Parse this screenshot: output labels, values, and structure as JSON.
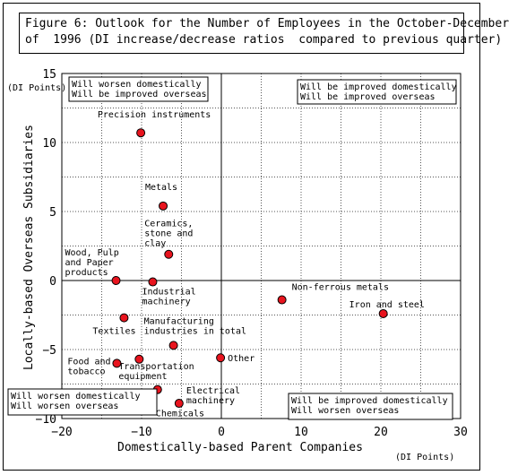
{
  "chart_data": {
    "type": "scatter",
    "title_line1": "Figure 6: Outlook for the Number of Employees in the October-December",
    "title_line2": "of  1996 (DI increase/decrease ratios  compared to previous quarter)",
    "xlabel": "Domestically-based Parent Companies",
    "ylabel": "Locally-based Overseas Subsidiaries",
    "x_unit": "(DI Points)",
    "y_unit": "(DI Points)",
    "xlim": [
      -20,
      30
    ],
    "ylim": [
      -10,
      15
    ],
    "x_ticks": [
      -20,
      -10,
      0,
      10,
      20,
      30
    ],
    "x_tick_labels": [
      "−20",
      "−10",
      "0",
      "10",
      "20",
      "30"
    ],
    "y_ticks": [
      15,
      10,
      5,
      0,
      -5,
      -10
    ],
    "y_tick_labels": [
      "15",
      "10",
      "5",
      "0",
      "−5",
      "−10"
    ],
    "grid": true,
    "point_color": "#e8141e",
    "quadrant_labels": {
      "top_left": [
        "Will worsen domestically",
        "Will be improved overseas"
      ],
      "top_right": [
        "Will be improved domestically",
        "Will be improved overseas"
      ],
      "bottom_left": [
        "Will worsen domestically",
        "Will worsen overseas"
      ],
      "bottom_right": [
        "Will be improved domestically",
        "Will worsen overseas"
      ]
    },
    "points": [
      {
        "label": [
          "Precision instruments"
        ],
        "x": -10.1,
        "y": 10.7
      },
      {
        "label": [
          "Metals"
        ],
        "x": -7.3,
        "y": 5.4
      },
      {
        "label": [
          "Ceramics,",
          "stone and",
          "clay"
        ],
        "x": -6.6,
        "y": 1.9
      },
      {
        "label": [
          "Wood, Pulp",
          "and Paper",
          "products"
        ],
        "x": -13.2,
        "y": 0.0
      },
      {
        "label": [
          "Industrial",
          "machinery"
        ],
        "x": -8.6,
        "y": -0.1
      },
      {
        "label": [
          "Non-ferrous metals"
        ],
        "x": 7.6,
        "y": -1.4
      },
      {
        "label": [
          "Iron and steel"
        ],
        "x": 20.3,
        "y": -2.4
      },
      {
        "label": [
          "Textiles"
        ],
        "x": -12.2,
        "y": -2.7
      },
      {
        "label": [
          "Manufacturing",
          "industries in total"
        ],
        "x": -6.0,
        "y": -4.7
      },
      {
        "label": [
          "Food and",
          "tobacco"
        ],
        "x": -13.1,
        "y": -6.0
      },
      {
        "label": [
          "Transportation",
          "equipment"
        ],
        "x": -10.3,
        "y": -5.7
      },
      {
        "label": [
          "Other"
        ],
        "x": -0.1,
        "y": -5.6
      },
      {
        "label": [
          "Chemicals"
        ],
        "x": -8.0,
        "y": -7.9
      },
      {
        "label": [
          "Electrical",
          "machinery"
        ],
        "x": -5.3,
        "y": -8.9
      }
    ]
  }
}
